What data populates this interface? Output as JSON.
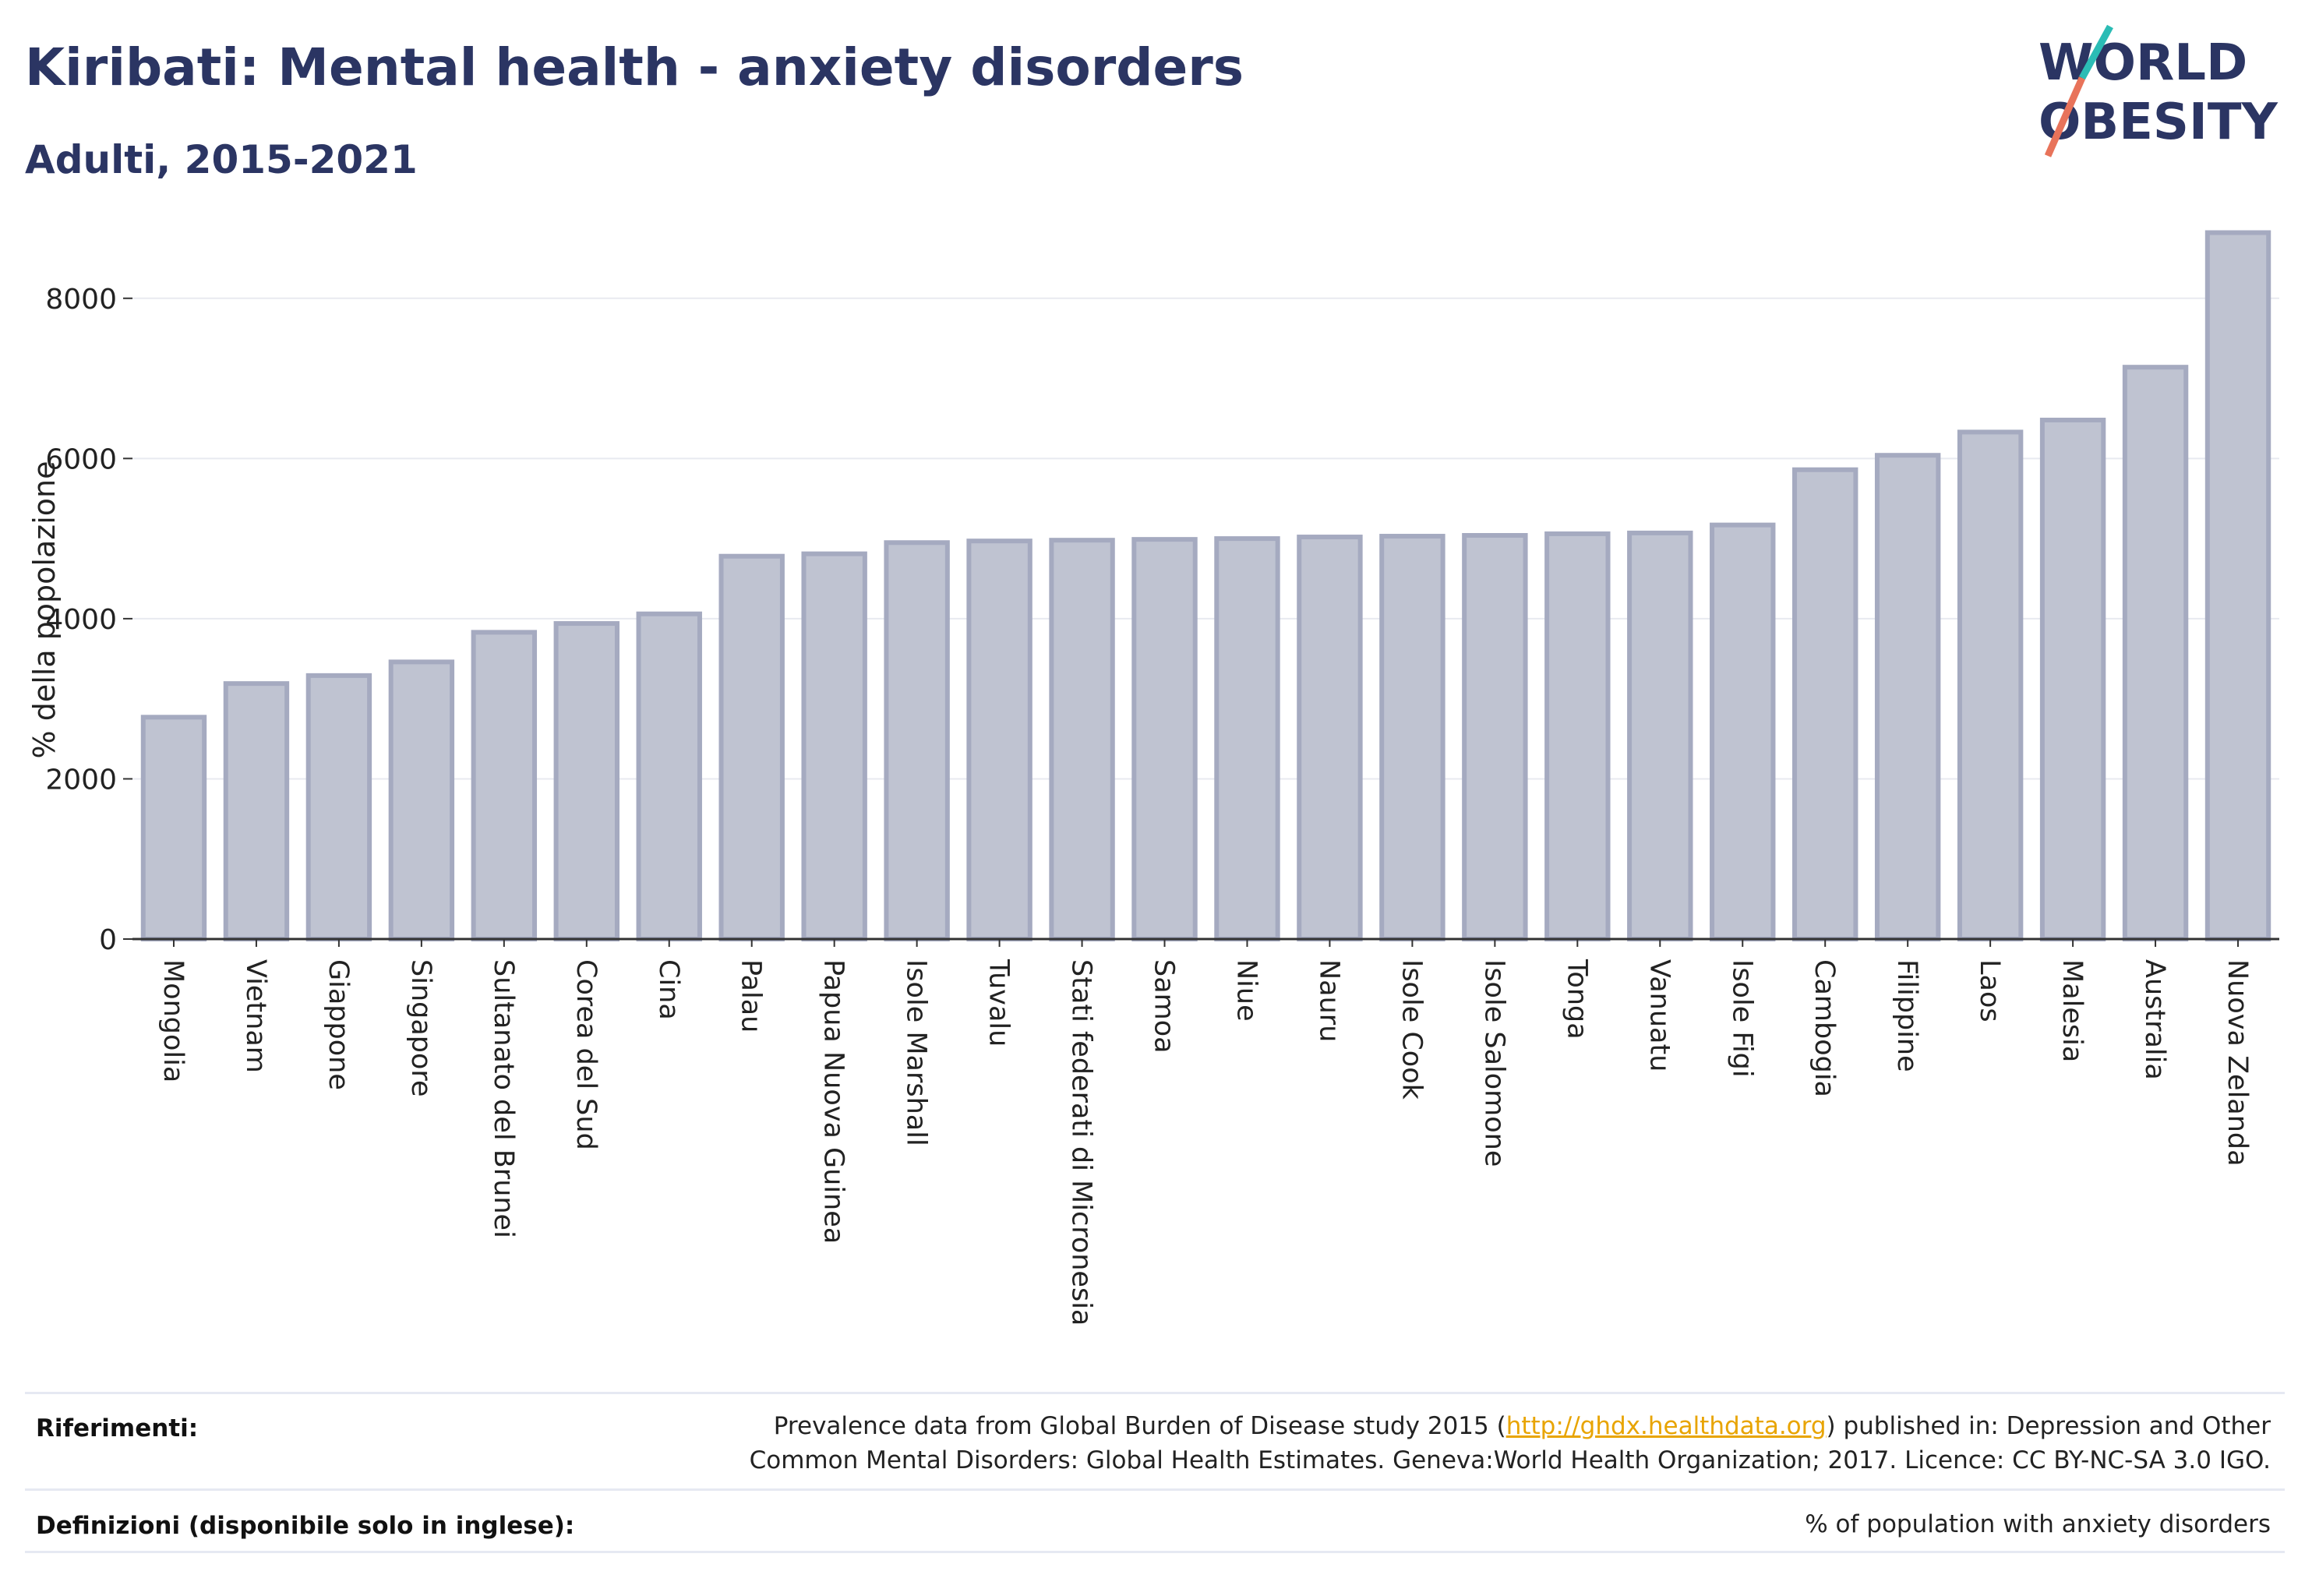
{
  "header": {
    "title": "Kiribati: Mental health - anxiety disorders",
    "subtitle": "Adulti, 2015-2021"
  },
  "logo": {
    "line1": "WORLD",
    "line2": "OBESITY"
  },
  "chart_data": {
    "type": "bar",
    "title": "Kiribati: Mental health - anxiety disorders",
    "subtitle": "Adulti, 2015-2021",
    "xlabel": "",
    "ylabel": "% della popolazione",
    "ylim": [
      0,
      9000
    ],
    "yticks": [
      0,
      2000,
      4000,
      6000,
      8000
    ],
    "grid": true,
    "categories": [
      "Mongolia",
      "Vietnam",
      "Giappone",
      "Singapore",
      "Sultanato del Brunei",
      "Corea del Sud",
      "Cina",
      "Palau",
      "Papua Nuova Guinea",
      "Isole Marshall",
      "Tuvalu",
      "Stati federati di Micronesia",
      "Samoa",
      "Niue",
      "Nauru",
      "Isole Cook",
      "Isole Salomone",
      "Tonga",
      "Vanuatu",
      "Isole Figi",
      "Cambogia",
      "Filippine",
      "Laos",
      "Malesia",
      "Australia",
      "Nuova Zelanda"
    ],
    "values": [
      2770,
      3190,
      3290,
      3460,
      3830,
      3940,
      4060,
      4780,
      4810,
      4950,
      4970,
      4980,
      4990,
      5000,
      5020,
      5030,
      5040,
      5060,
      5070,
      5170,
      5860,
      6040,
      6330,
      6480,
      7140,
      8820
    ],
    "colors": {
      "bar_fill": "#bfc3d1",
      "bar_stroke": "#a5aac0",
      "axis": "#333333",
      "grid": "#e8eaf0"
    }
  },
  "footer": {
    "references_label": "Riferimenti:",
    "references_text_1": "Prevalence data from Global Burden of Disease study 2015 (",
    "references_link": "http://ghdx.healthdata.org",
    "references_text_2": ") published in: Depression and Other Common Mental Disorders: Global Health Estimates. Geneva:World Health Organization; 2017. Licence: CC BY-NC-SA 3.0 IGO.",
    "definitions_label": "Definizioni (disponibile solo in inglese):",
    "definitions_text": "% of population with anxiety disorders"
  }
}
